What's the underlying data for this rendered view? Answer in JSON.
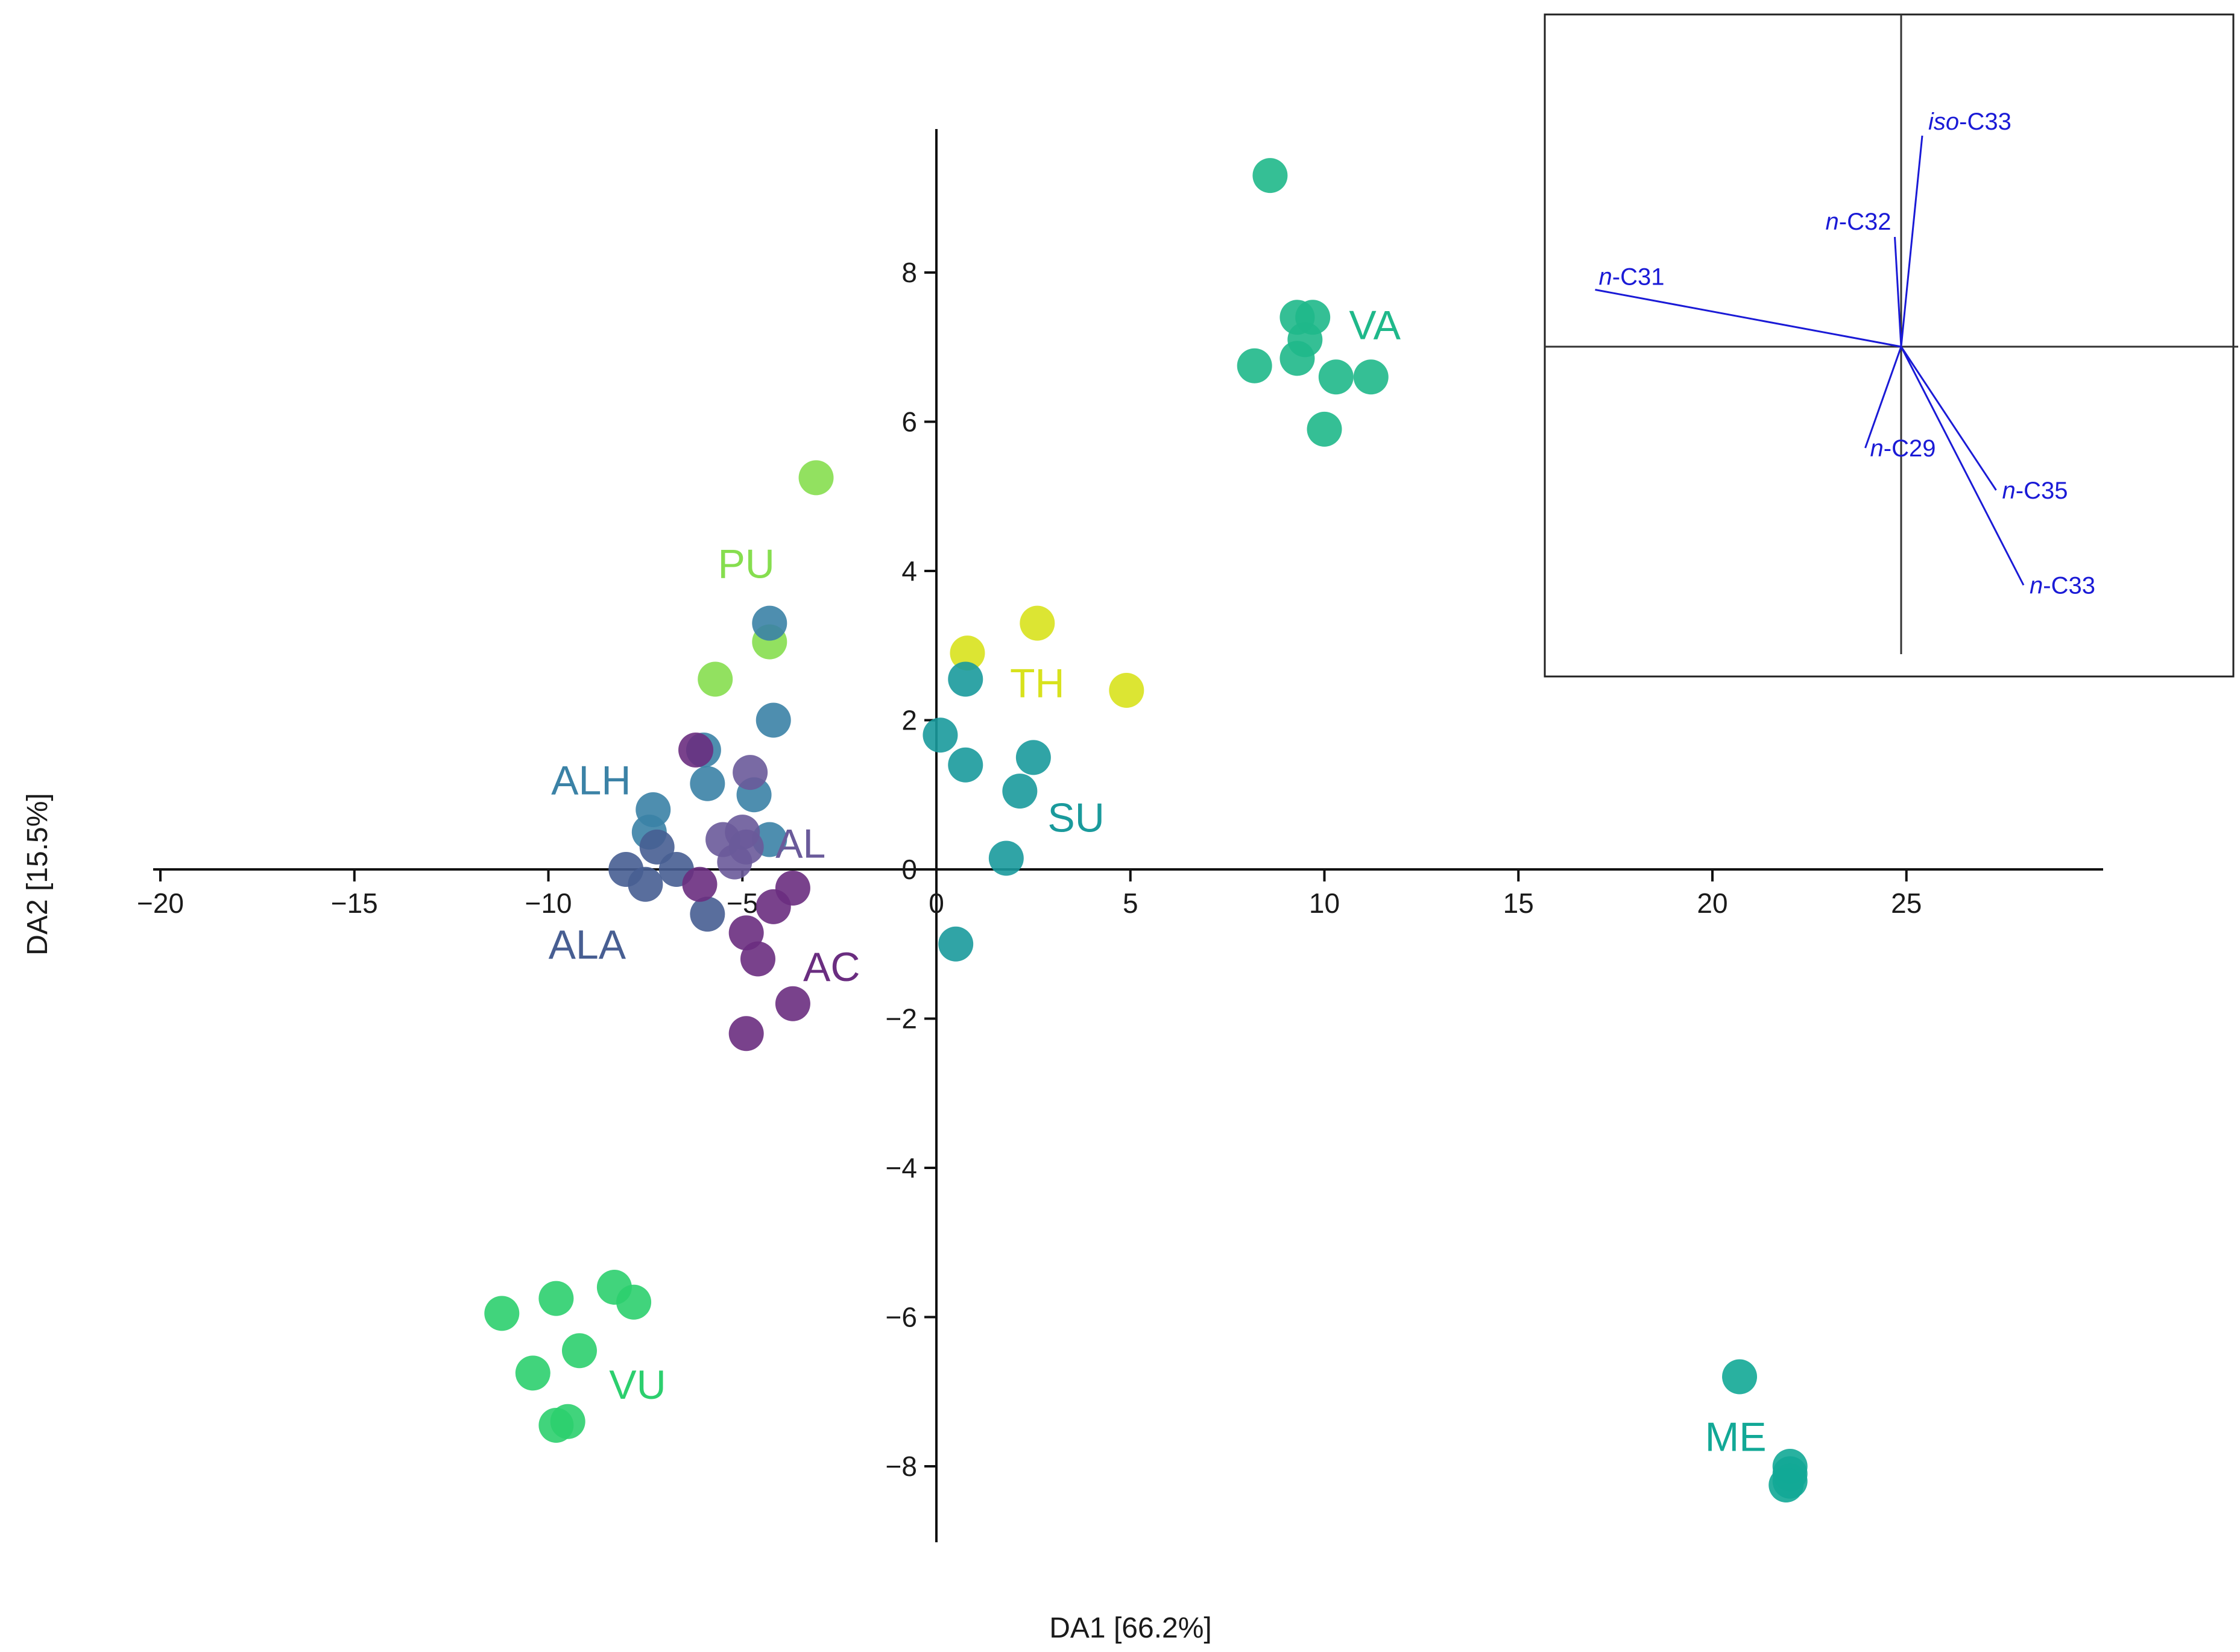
{
  "chart_data": {
    "type": "scatter",
    "title": "",
    "xlabel": "DA1 [66.2%]",
    "ylabel": "DA2 [15.5%]",
    "xlim": [
      -20,
      30
    ],
    "ylim": [
      -9,
      10
    ],
    "x_ticks": [
      -20,
      -15,
      -10,
      -5,
      0,
      5,
      10,
      15,
      20,
      25
    ],
    "x_tick_labels": [
      "−20",
      "−15",
      "−10",
      "−5",
      "0",
      "5",
      "10",
      "15",
      "20",
      "25"
    ],
    "y_ticks": [
      -8,
      -6,
      -4,
      -2,
      0,
      2,
      4,
      6,
      8
    ],
    "y_tick_labels": [
      "−8",
      "−6",
      "−4",
      "−2",
      "0",
      "2",
      "4",
      "6",
      "8"
    ],
    "grid": false,
    "series": [
      {
        "name": "VA",
        "color": "#1fb88a",
        "label_at": [
          11.3,
          7.3
        ],
        "points": [
          [
            8.6,
            9.3
          ],
          [
            9.3,
            7.4
          ],
          [
            9.7,
            7.4
          ],
          [
            9.5,
            7.1
          ],
          [
            8.2,
            6.75
          ],
          [
            9.3,
            6.85
          ],
          [
            10.3,
            6.6
          ],
          [
            11.2,
            6.6
          ],
          [
            10.0,
            5.9
          ]
        ]
      },
      {
        "name": "PU",
        "color": "#86de4f",
        "label_at": [
          -4.9,
          4.1
        ],
        "points": [
          [
            -3.1,
            5.25
          ],
          [
            -4.3,
            3.05
          ],
          [
            -5.7,
            2.55
          ]
        ]
      },
      {
        "name": "TH",
        "color": "#d8e21d",
        "label_at": [
          2.6,
          2.5
        ],
        "points": [
          [
            0.8,
            2.9
          ],
          [
            2.6,
            3.3
          ],
          [
            4.9,
            2.4
          ]
        ]
      },
      {
        "name": "SU",
        "color": "#1a9a9c",
        "label_at": [
          3.6,
          0.7
        ],
        "points": [
          [
            0.1,
            1.8
          ],
          [
            0.75,
            2.55
          ],
          [
            0.75,
            1.4
          ],
          [
            2.5,
            1.5
          ],
          [
            2.15,
            1.05
          ],
          [
            1.8,
            0.15
          ],
          [
            0.5,
            -1.0
          ]
        ]
      },
      {
        "name": "ALH",
        "color": "#3b82a6",
        "label_at": [
          -8.9,
          1.2
        ],
        "points": [
          [
            -4.3,
            3.3
          ],
          [
            -4.2,
            2.0
          ],
          [
            -6.0,
            1.6
          ],
          [
            -5.9,
            1.15
          ],
          [
            -4.7,
            1.0
          ],
          [
            -7.3,
            0.8
          ],
          [
            -7.4,
            0.5
          ],
          [
            -4.3,
            0.4
          ]
        ]
      },
      {
        "name": "AL",
        "color": "#6a5a9a",
        "label_at": [
          -3.5,
          0.35
        ],
        "points": [
          [
            -4.8,
            1.3
          ],
          [
            -5.5,
            0.4
          ],
          [
            -5.0,
            0.5
          ],
          [
            -4.9,
            0.3
          ],
          [
            -5.2,
            0.1
          ]
        ]
      },
      {
        "name": "ALA",
        "color": "#475e92",
        "label_at": [
          -9.0,
          -1.0
        ],
        "points": [
          [
            -8.0,
            0.0
          ],
          [
            -7.5,
            -0.2
          ],
          [
            -6.7,
            0.0
          ],
          [
            -7.2,
            0.3
          ],
          [
            -5.9,
            -0.6
          ]
        ]
      },
      {
        "name": "AC",
        "color": "#6a2d80",
        "label_at": [
          -2.7,
          -1.3
        ],
        "points": [
          [
            -6.2,
            1.6
          ],
          [
            -6.1,
            -0.2
          ],
          [
            -3.7,
            -0.25
          ],
          [
            -4.2,
            -0.5
          ],
          [
            -4.9,
            -0.85
          ],
          [
            -4.6,
            -1.2
          ],
          [
            -3.7,
            -1.8
          ],
          [
            -4.9,
            -2.2
          ]
        ]
      },
      {
        "name": "VU",
        "color": "#2ccf6e",
        "label_at": [
          -7.7,
          -6.9
        ],
        "points": [
          [
            -11.2,
            -5.95
          ],
          [
            -9.8,
            -5.75
          ],
          [
            -8.3,
            -5.6
          ],
          [
            -7.8,
            -5.8
          ],
          [
            -10.4,
            -6.75
          ],
          [
            -9.2,
            -6.45
          ],
          [
            -9.8,
            -7.45
          ],
          [
            -9.5,
            -7.4
          ]
        ]
      },
      {
        "name": "ME",
        "color": "#12a896",
        "label_at": [
          20.6,
          -7.6
        ],
        "points": [
          [
            20.7,
            -6.8
          ],
          [
            22.0,
            -8.0
          ],
          [
            22.0,
            -8.1
          ],
          [
            22.0,
            -8.2
          ],
          [
            21.9,
            -8.25
          ]
        ]
      }
    ],
    "inset_loadings": {
      "description": "Loadings biplot (vectors from origin)",
      "vectors": [
        {
          "name_prefix": "iso",
          "name_suffix": "-C33",
          "dx": 0.1,
          "dy": 1.0
        },
        {
          "name_prefix": "n",
          "name_suffix": "-C32",
          "dx": -0.03,
          "dy": 0.52
        },
        {
          "name_prefix": "n",
          "name_suffix": "-C31",
          "dx": -1.45,
          "dy": 0.27
        },
        {
          "name_prefix": "n",
          "name_suffix": "-C29",
          "dx": -0.17,
          "dy": -0.48
        },
        {
          "name_prefix": "n",
          "name_suffix": "-C35",
          "dx": 0.45,
          "dy": -0.68
        },
        {
          "name_prefix": "n",
          "name_suffix": "-C33",
          "dx": 0.58,
          "dy": -1.13
        }
      ]
    }
  }
}
